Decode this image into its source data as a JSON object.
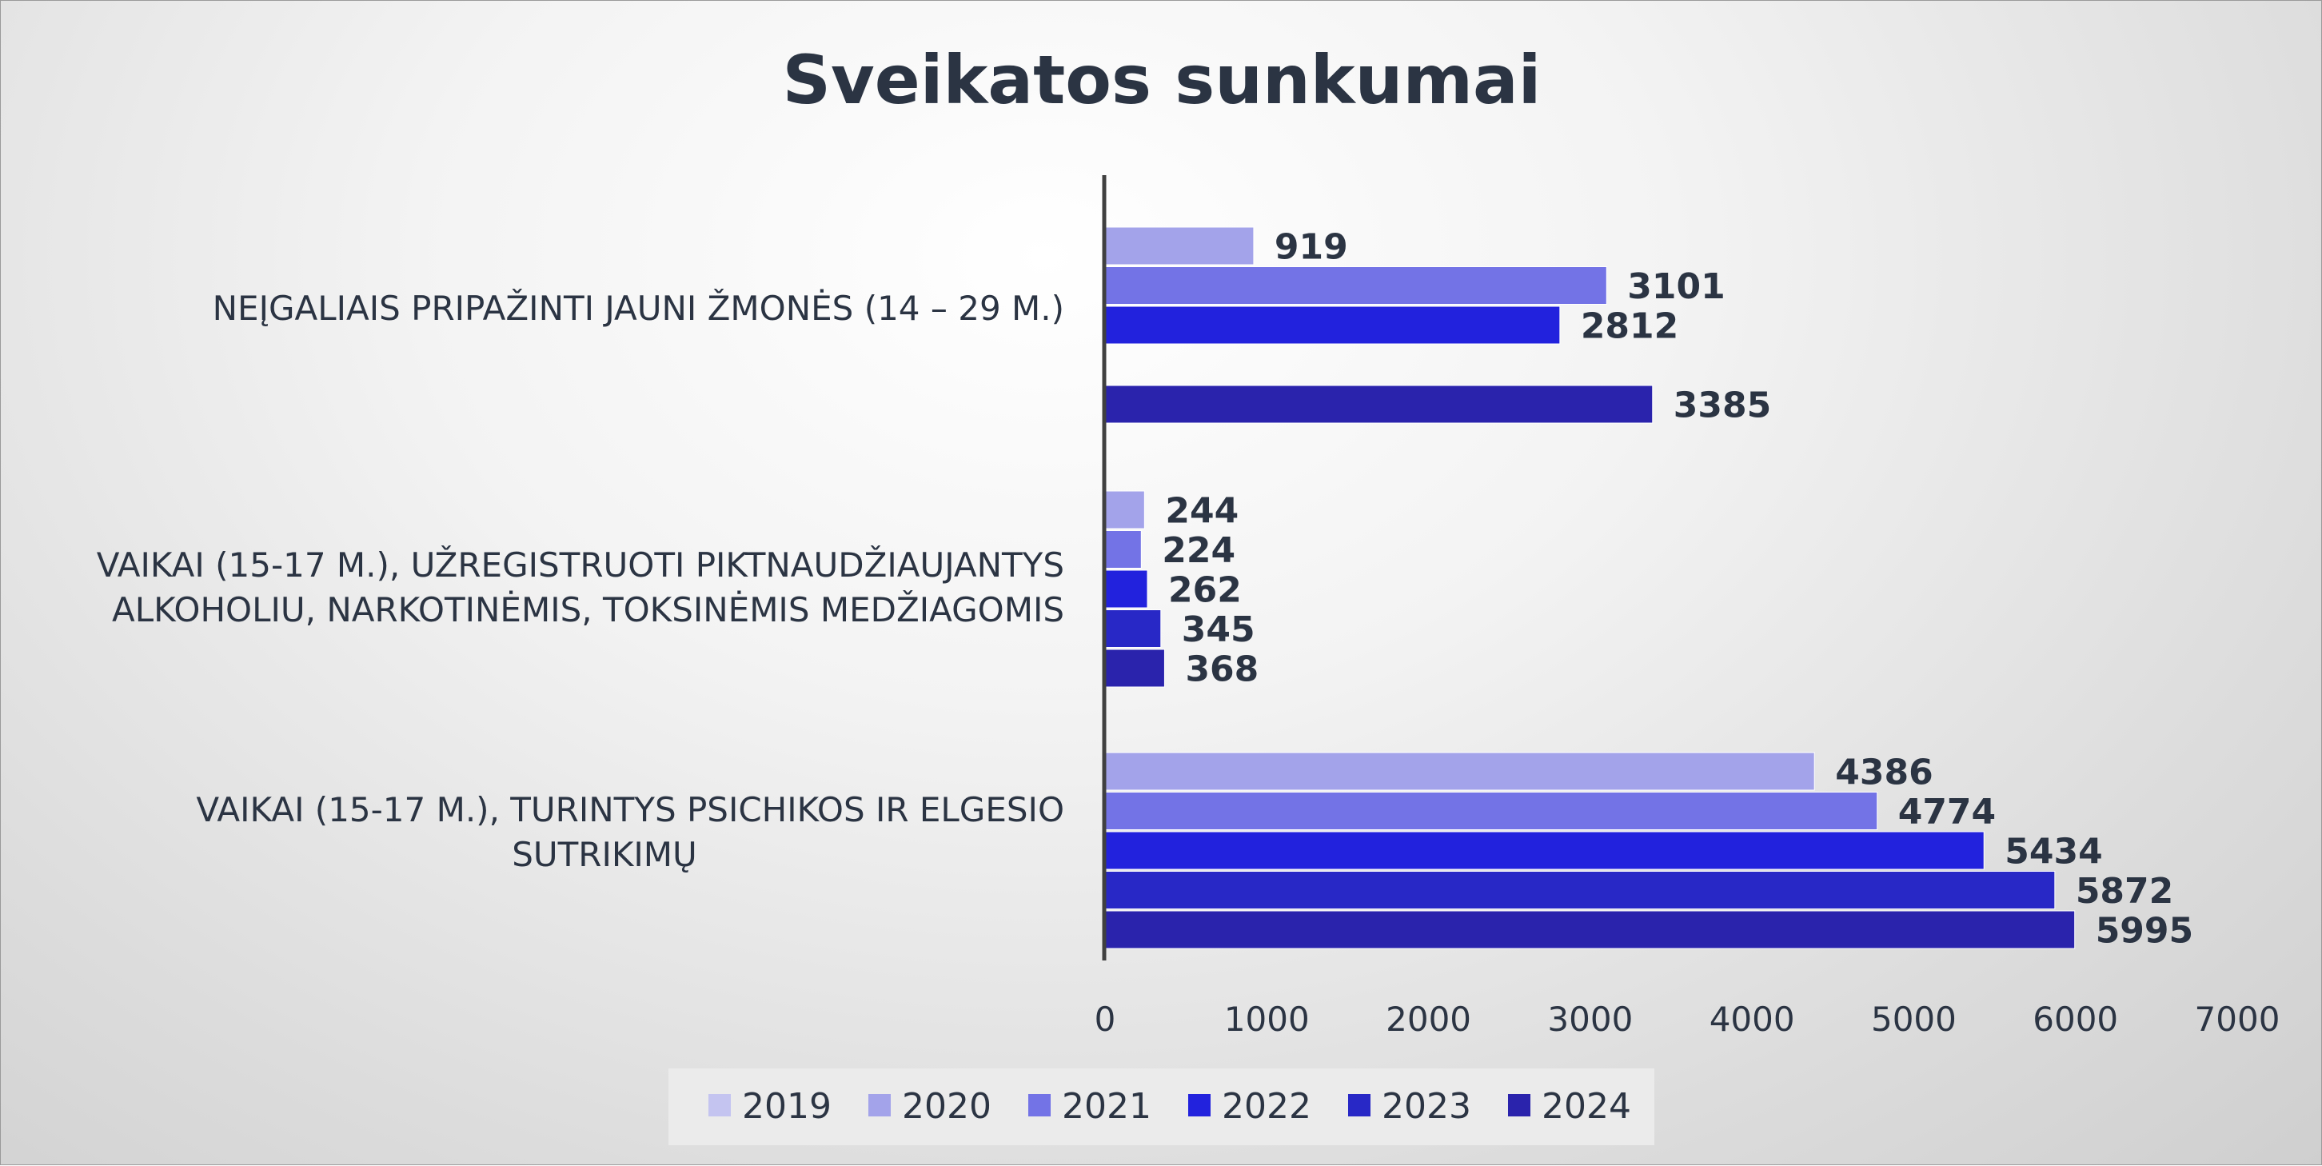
{
  "chart_data": {
    "type": "bar",
    "orientation": "horizontal",
    "title": "Sveikatos sunkumai",
    "categories": [
      [
        "NEĮGALIAIS PRIPAŽINTI JAUNI ŽMONĖS (14 – 29 M.)"
      ],
      [
        "VAIKAI (15-17 M.), UŽREGISTRUOTI PIKTNAUDŽIAUJANTYS",
        "ALKOHOLIU, NARKOTINĖMIS, TOKSINĖMIS MEDŽIAGOMIS"
      ],
      [
        "VAIKAI (15-17 M.), TURINTYS PSICHIKOS IR ELGESIO",
        "SUTRIKIMŲ"
      ]
    ],
    "series": [
      {
        "name": "2019",
        "color": "#c4c4f0",
        "values": [
          null,
          null,
          null
        ]
      },
      {
        "name": "2020",
        "color": "#a3a3ea",
        "values": [
          919,
          244,
          4386
        ]
      },
      {
        "name": "2021",
        "color": "#7373e6",
        "values": [
          3101,
          224,
          4774
        ]
      },
      {
        "name": "2022",
        "color": "#2222dd",
        "values": [
          2812,
          262,
          5434
        ]
      },
      {
        "name": "2023",
        "color": "#2828c6",
        "values": [
          null,
          345,
          5872
        ]
      },
      {
        "name": "2024",
        "color": "#2a23ac",
        "values": [
          3385,
          368,
          5995
        ]
      }
    ],
    "xlim": [
      0,
      7000
    ],
    "xticks": [
      0,
      1000,
      2000,
      3000,
      4000,
      5000,
      6000,
      7000
    ],
    "grid": false,
    "legend_position": "bottom",
    "data_labels": [
      [
        {
          "series": 1,
          "value": "919"
        },
        {
          "series": 2,
          "value": "3101"
        },
        {
          "series": 3,
          "value": "2812"
        },
        {
          "series": 5,
          "value": "3385"
        }
      ],
      [
        {
          "series": 1,
          "value": "244"
        },
        {
          "series": 2,
          "value": "224"
        },
        {
          "series": 3,
          "value": "262"
        },
        {
          "series": 4,
          "value": "345"
        },
        {
          "series": 5,
          "value": "368"
        }
      ],
      [
        {
          "series": 1,
          "value": "4386"
        },
        {
          "series": 2,
          "value": "4774"
        },
        {
          "series": 3,
          "value": "5434"
        },
        {
          "series": 4,
          "value": "5872"
        },
        {
          "series": 5,
          "value": "5995"
        }
      ]
    ]
  }
}
